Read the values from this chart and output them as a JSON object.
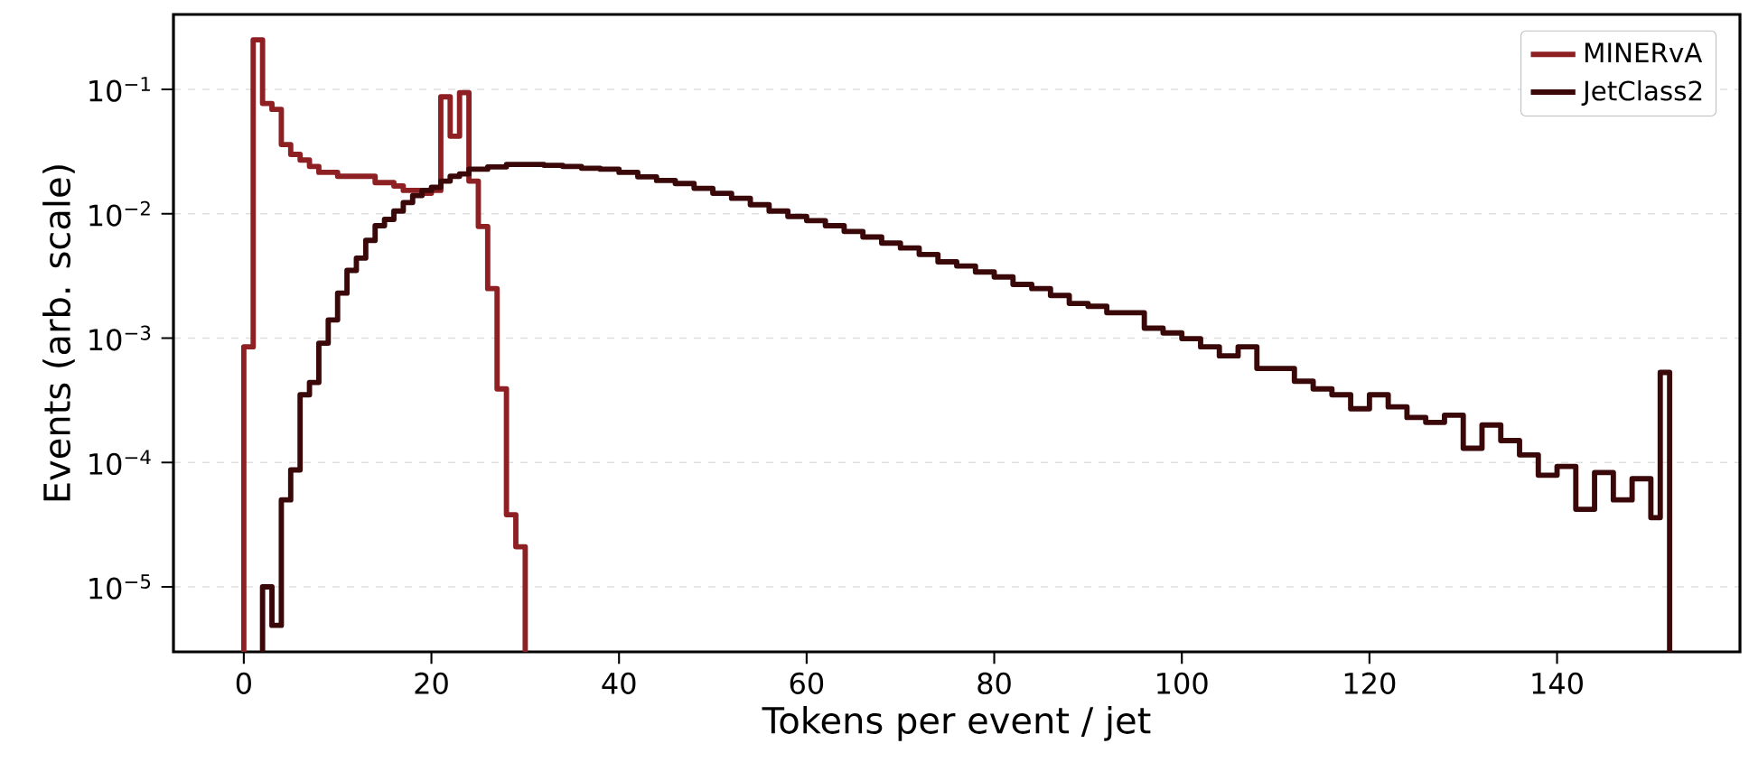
{
  "chart_data": {
    "type": "step",
    "xlabel": "Tokens per event / jet",
    "ylabel": "Events (arb. scale)",
    "log": "y",
    "grid": "y",
    "legend": "top right",
    "xlim": [
      -7.5,
      159.5
    ],
    "ylim": [
      3e-06,
      0.4
    ],
    "xticks": [
      0,
      20,
      40,
      60,
      80,
      100,
      120,
      140
    ],
    "yticks": [
      {
        "value": 1e-05,
        "label": "10$^{−5}$"
      },
      {
        "value": 0.0001,
        "label": "10$^{−4}$"
      },
      {
        "value": 0.001,
        "label": "10$^{−3}$"
      },
      {
        "value": 0.01,
        "label": "10$^{−2}$"
      },
      {
        "value": 0.1,
        "label": "10$^{−1}$"
      }
    ],
    "series": [
      {
        "name": "MINERvA",
        "color": "#8e2024",
        "x": [
          0,
          1,
          2,
          3,
          4,
          5,
          6,
          7,
          8,
          9,
          10,
          11,
          12,
          13,
          14,
          15,
          16,
          17,
          18,
          19,
          20,
          21,
          22,
          23,
          24,
          25,
          26,
          27,
          28,
          29,
          30
        ],
        "values": [
          0.00085,
          0.25,
          0.077,
          0.069,
          0.036,
          0.03,
          0.027,
          0.024,
          0.0215,
          0.0215,
          0.02,
          0.02,
          0.02,
          0.02,
          0.0178,
          0.0178,
          0.0167,
          0.0154,
          0.0154,
          0.0146,
          0.0154,
          0.087,
          0.042,
          0.094,
          0.0183,
          0.0079,
          0.0025,
          0.00039,
          3.8e-05,
          2.1e-05,
          2.1e-05
        ]
      },
      {
        "name": "JetClass2",
        "color": "#3a0809",
        "x": [
          2,
          3,
          4,
          5,
          6,
          7,
          8,
          9,
          10,
          11,
          12,
          13,
          14,
          15,
          16,
          17,
          18,
          19,
          20,
          21,
          22,
          23,
          24,
          25,
          26,
          27,
          28,
          29,
          30,
          31,
          32,
          33,
          34,
          35,
          36,
          37,
          38,
          39,
          40,
          41,
          42,
          43,
          44,
          45,
          46,
          47,
          48,
          49,
          50,
          51,
          52,
          53,
          54,
          55,
          56,
          57,
          58,
          59,
          60,
          61,
          62,
          63,
          64,
          65,
          66,
          67,
          68,
          69,
          70,
          71,
          72,
          73,
          74,
          75,
          76,
          77,
          78,
          79,
          80,
          81,
          82,
          83,
          84,
          85,
          86,
          87,
          88,
          89,
          90,
          91,
          92,
          93,
          94,
          95,
          96,
          97,
          98,
          99,
          100,
          101,
          102,
          103,
          104,
          105,
          106,
          107,
          108,
          109,
          110,
          111,
          112,
          113,
          114,
          115,
          116,
          117,
          118,
          119,
          120,
          121,
          122,
          123,
          124,
          125,
          126,
          127,
          128,
          129,
          130,
          131,
          132,
          133,
          134,
          135,
          136,
          137,
          138,
          139,
          140,
          141,
          142,
          143,
          144,
          145,
          146,
          147,
          148,
          149,
          150,
          151,
          152
        ],
        "values": [
          1e-05,
          4.9e-06,
          5e-05,
          8.7e-05,
          0.00035,
          0.00044,
          0.00091,
          0.0014,
          0.0023,
          0.0035,
          0.0044,
          0.0061,
          0.008,
          0.009,
          0.0105,
          0.0123,
          0.014,
          0.0154,
          0.0163,
          0.0183,
          0.02,
          0.0209,
          0.0228,
          0.0228,
          0.0238,
          0.0238,
          0.0249,
          0.0249,
          0.0249,
          0.0249,
          0.0245,
          0.0245,
          0.024,
          0.024,
          0.0232,
          0.0232,
          0.0228,
          0.0228,
          0.0215,
          0.0215,
          0.0198,
          0.0198,
          0.0185,
          0.0185,
          0.0175,
          0.0175,
          0.016,
          0.016,
          0.0146,
          0.0146,
          0.0133,
          0.0133,
          0.0118,
          0.0118,
          0.0105,
          0.0105,
          0.0095,
          0.0095,
          0.0088,
          0.0088,
          0.008,
          0.008,
          0.0072,
          0.0072,
          0.0065,
          0.0065,
          0.0058,
          0.0058,
          0.0053,
          0.0053,
          0.0047,
          0.0047,
          0.0041,
          0.0041,
          0.0038,
          0.0038,
          0.0034,
          0.0034,
          0.0031,
          0.0031,
          0.0027,
          0.0027,
          0.0025,
          0.0025,
          0.0022,
          0.0022,
          0.0019,
          0.0019,
          0.0018,
          0.0018,
          0.0016,
          0.0016,
          0.0016,
          0.0016,
          0.0012,
          0.0012,
          0.0011,
          0.0011,
          0.00099,
          0.00099,
          0.00085,
          0.00085,
          0.00072,
          0.00072,
          0.00085,
          0.00085,
          0.00057,
          0.00057,
          0.00057,
          0.00057,
          0.00045,
          0.00045,
          0.00039,
          0.00039,
          0.00035,
          0.00035,
          0.00027,
          0.00027,
          0.00035,
          0.00035,
          0.00028,
          0.00028,
          0.00023,
          0.00023,
          0.00021,
          0.00021,
          0.00024,
          0.00024,
          0.00013,
          0.00013,
          0.0002,
          0.0002,
          0.00015,
          0.00015,
          0.000115,
          0.000115,
          7.9e-05,
          7.9e-05,
          9.3e-05,
          9.3e-05,
          4.2e-05,
          4.2e-05,
          8.3e-05,
          8.3e-05,
          5e-05,
          5e-05,
          7.4e-05,
          7.4e-05,
          3.6e-05,
          0.00053,
          0.00053
        ]
      }
    ]
  }
}
